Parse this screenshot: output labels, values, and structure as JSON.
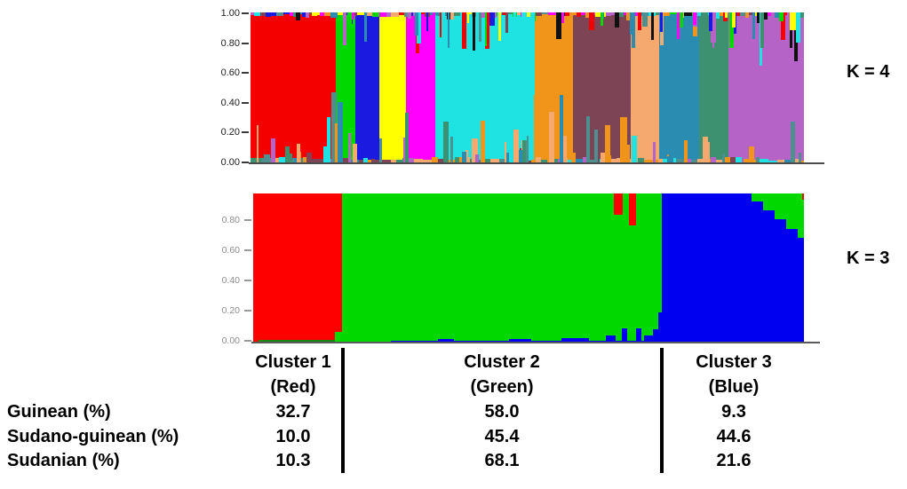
{
  "labels": {
    "k4": "K = 4",
    "k3": "K = 3"
  },
  "chart_data": [
    {
      "type": "bar",
      "name": "structure_admixture_k4",
      "k": 4,
      "k_label": "K = 4",
      "title": "",
      "xlabel": "",
      "ylabel": "",
      "ylim": [
        0,
        1
      ],
      "grid": false,
      "legend": "none",
      "y_ticks": [
        "1.00",
        "0.80",
        "0.60",
        "0.40",
        "0.20",
        "0.00"
      ],
      "description": "STRUCTURE admixture plot; each thin vertical bar is one individual, colored by inferred ancestry proportion",
      "blocks": [
        {
          "color_name": "red",
          "hex": "#F40000",
          "width_frac": 0.1541
        },
        {
          "color_name": "green",
          "hex": "#00D800",
          "width_frac": 0.0353
        },
        {
          "color_name": "blue",
          "hex": "#1A1AE0",
          "width_frac": 0.0433
        },
        {
          "color_name": "yellow",
          "hex": "#FFFF00",
          "width_frac": 0.0482
        },
        {
          "color_name": "magenta",
          "hex": "#FF00FF",
          "width_frac": 0.053
        },
        {
          "color_name": "cyan",
          "hex": "#1FE3E3",
          "width_frac": 0.1782
        },
        {
          "color_name": "orange",
          "hex": "#F0941A",
          "width_frac": 0.0706
        },
        {
          "color_name": "maroon",
          "hex": "#7C4455",
          "width_frac": 0.1043
        },
        {
          "color_name": "sandy-brown",
          "hex": "#F5A96E",
          "width_frac": 0.0514
        },
        {
          "color_name": "teal-blue",
          "hex": "#2A8CB0",
          "width_frac": 0.0722
        },
        {
          "color_name": "sea-green",
          "hex": "#3D9070",
          "width_frac": 0.053
        },
        {
          "color_name": "orchid",
          "hex": "#B663C8",
          "width_frac": 0.1364
        }
      ]
    },
    {
      "type": "bar",
      "name": "structure_admixture_k3",
      "k": 3,
      "k_label": "K = 3",
      "title": "",
      "xlabel": "",
      "ylabel": "",
      "ylim": [
        0,
        1
      ],
      "grid": false,
      "legend": "none",
      "y_ticks": [
        "0.80",
        "0.60",
        "0.40",
        "0.20",
        "0.00"
      ],
      "description": "STRUCTURE admixture plot at K=3 with three cluster blocks aligned to the table columns below",
      "blocks": [
        {
          "color_name": "red",
          "cluster": "Cluster 1",
          "hex": "#FF0000",
          "width_frac": 0.1613
        },
        {
          "color_name": "green",
          "cluster": "Cluster 2",
          "hex": "#00D800",
          "width_frac": 0.5806
        },
        {
          "color_name": "blue",
          "cluster": "Cluster 3",
          "hex": "#0000F0",
          "width_frac": 0.2581
        }
      ]
    }
  ],
  "table": {
    "row_labels": [
      "Guinean (%)",
      "Sudano-guinean (%)",
      "Sudanian (%)"
    ],
    "columns": [
      {
        "header": "Cluster 1",
        "subheader": "(Red)",
        "values": [
          "32.7",
          "10.0",
          "10.3"
        ]
      },
      {
        "header": "Cluster 2",
        "subheader": "(Green)",
        "values": [
          "58.0",
          "45.4",
          "68.1"
        ]
      },
      {
        "header": "Cluster 3",
        "subheader": "(Blue)",
        "values": [
          "9.3",
          "44.6",
          "21.6"
        ]
      }
    ]
  },
  "render": {
    "noise_k4": {
      "seed": 1337,
      "top_streaks": 72,
      "bottom_streaks": 58,
      "palette": [
        "#F40000",
        "#00D800",
        "#1A1AE0",
        "#FFFF00",
        "#FF00FF",
        "#1FE3E3",
        "#F0941A",
        "#7C4455",
        "#F5A96E",
        "#2A8CB0",
        "#3D9070",
        "#B663C8",
        "#4E8F8F",
        "#111111"
      ],
      "bottom_palette": [
        "#F0941A",
        "#F5A96E",
        "#2A8CB0",
        "#4E8F8F",
        "#1FE3E3",
        "#7C4455",
        "#B663C8",
        "#3D9070",
        "#F0941A",
        "#F5A96E"
      ]
    },
    "features_k4": [
      {
        "x": 0.138,
        "w": 0.007,
        "h": 0.3,
        "side": "bottom",
        "color": "#1FE3E3"
      },
      {
        "x": 0.146,
        "w": 0.01,
        "h": 0.47,
        "side": "bottom",
        "color": "#4E8F8F"
      },
      {
        "x": 0.152,
        "w": 0.007,
        "h": 0.26,
        "side": "bottom",
        "color": "#F0941A"
      },
      {
        "x": 0.158,
        "w": 0.009,
        "h": 0.4,
        "side": "bottom",
        "color": "#2A8CB0"
      },
      {
        "x": 0.232,
        "w": 0.006,
        "h": 0.16,
        "side": "bottom",
        "color": "#4E8F8F"
      },
      {
        "x": 0.28,
        "w": 0.006,
        "h": 0.33,
        "side": "bottom",
        "color": "#3D9070"
      },
      {
        "x": 0.345,
        "w": 0.007,
        "h": 0.55,
        "side": "top",
        "color": "#1FE3E3"
      },
      {
        "x": 0.382,
        "w": 0.008,
        "h": 0.24,
        "side": "top",
        "color": "#F40000"
      },
      {
        "x": 0.415,
        "w": 0.008,
        "h": 0.28,
        "side": "bottom",
        "color": "#F0941A"
      },
      {
        "x": 0.475,
        "w": 0.01,
        "h": 0.22,
        "side": "bottom",
        "color": "#F5A96E"
      },
      {
        "x": 0.49,
        "w": 0.01,
        "h": 0.85,
        "side": "top",
        "color": "#1FE3E3"
      },
      {
        "x": 0.505,
        "w": 0.008,
        "h": 0.55,
        "side": "top",
        "color": "#1FE3E3"
      },
      {
        "x": 0.54,
        "w": 0.009,
        "h": 0.34,
        "side": "bottom",
        "color": "#F5A96E"
      },
      {
        "x": 0.558,
        "w": 0.007,
        "h": 0.45,
        "side": "bottom",
        "color": "#2A8CB0"
      },
      {
        "x": 0.64,
        "w": 0.01,
        "h": 0.25,
        "side": "bottom",
        "color": "#F0941A"
      },
      {
        "x": 0.668,
        "w": 0.012,
        "h": 0.3,
        "side": "bottom",
        "color": "#F0941A"
      },
      {
        "x": 0.688,
        "w": 0.01,
        "h": 0.18,
        "side": "bottom",
        "color": "#1FE3E3"
      },
      {
        "x": 0.7,
        "w": 0.006,
        "h": 0.12,
        "side": "top",
        "color": "#F40000"
      },
      {
        "x": 0.74,
        "w": 0.005,
        "h": 0.13,
        "side": "top",
        "color": "#1A1AE0"
      },
      {
        "x": 0.775,
        "w": 0.006,
        "h": 0.1,
        "side": "top",
        "color": "#00D800"
      },
      {
        "x": 0.8,
        "w": 0.005,
        "h": 0.08,
        "side": "top",
        "color": "#FF00FF"
      },
      {
        "x": 0.87,
        "w": 0.006,
        "h": 0.1,
        "side": "top",
        "color": "#FFFF00"
      },
      {
        "x": 0.955,
        "w": 0.008,
        "h": 0.06,
        "side": "top",
        "color": "#00D800"
      },
      {
        "x": 0.975,
        "w": 0.01,
        "h": 0.12,
        "side": "top",
        "color": "#FFFF00"
      },
      {
        "x": 0.985,
        "w": 0.008,
        "h": 0.2,
        "side": "top",
        "color": "#1FE3E3"
      }
    ],
    "features_k3": [
      {
        "x": 0.01,
        "w": 0.145,
        "h": 0.015,
        "side": "bottom",
        "color": "#128812"
      },
      {
        "x": 0.148,
        "w": 0.016,
        "h": 0.07,
        "side": "bottom",
        "color": "#00D800"
      },
      {
        "x": 0.25,
        "w": 0.47,
        "h": 0.012,
        "side": "bottom",
        "color": "#0000F0"
      },
      {
        "x": 0.335,
        "w": 0.03,
        "h": 0.022,
        "side": "bottom",
        "color": "#0000F0"
      },
      {
        "x": 0.465,
        "w": 0.04,
        "h": 0.025,
        "side": "bottom",
        "color": "#0000F0"
      },
      {
        "x": 0.56,
        "w": 0.05,
        "h": 0.03,
        "side": "bottom",
        "color": "#0000F0"
      },
      {
        "x": 0.64,
        "w": 0.018,
        "h": 0.045,
        "side": "bottom",
        "color": "#0000F0"
      },
      {
        "x": 0.669,
        "w": 0.01,
        "h": 0.095,
        "side": "bottom",
        "color": "#0000F0"
      },
      {
        "x": 0.695,
        "w": 0.01,
        "h": 0.095,
        "side": "bottom",
        "color": "#0000F0"
      },
      {
        "x": 0.71,
        "w": 0.016,
        "h": 0.05,
        "side": "bottom",
        "color": "#0000F0"
      },
      {
        "x": 0.726,
        "w": 0.016,
        "h": 0.09,
        "side": "bottom",
        "color": "#0000F0"
      },
      {
        "x": 0.735,
        "w": 0.008,
        "h": 0.2,
        "side": "bottom",
        "color": "#0000F0"
      },
      {
        "x": 0.655,
        "w": 0.016,
        "h": 0.14,
        "side": "top",
        "color": "#FF0000"
      },
      {
        "x": 0.683,
        "w": 0.012,
        "h": 0.215,
        "side": "top",
        "color": "#FF0000"
      },
      {
        "x": 0.905,
        "w": 0.021,
        "h": 0.055,
        "side": "top",
        "color": "#00D800"
      },
      {
        "x": 0.926,
        "w": 0.021,
        "h": 0.115,
        "side": "top",
        "color": "#00D800"
      },
      {
        "x": 0.947,
        "w": 0.021,
        "h": 0.175,
        "side": "top",
        "color": "#00D800"
      },
      {
        "x": 0.968,
        "w": 0.021,
        "h": 0.24,
        "side": "top",
        "color": "#00D800"
      },
      {
        "x": 0.989,
        "w": 0.011,
        "h": 0.3,
        "side": "top",
        "color": "#00D800"
      },
      {
        "x": 0.996,
        "w": 0.004,
        "h": 0.04,
        "side": "top",
        "color": "#FF0000"
      }
    ]
  }
}
